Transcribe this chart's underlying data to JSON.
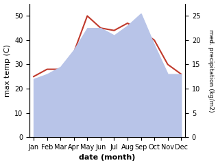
{
  "months": [
    "Jan",
    "Feb",
    "Mar",
    "Apr",
    "May",
    "Jun",
    "Jul",
    "Aug",
    "Sep",
    "Oct",
    "Nov",
    "Dec"
  ],
  "temp": [
    25,
    28,
    28,
    35,
    50,
    45,
    44,
    47,
    44,
    40,
    30,
    26
  ],
  "precip": [
    12,
    13,
    14.5,
    18,
    22.5,
    22.5,
    21,
    23,
    25.5,
    19,
    13,
    13
  ],
  "temp_color": "#c0392b",
  "precip_fill_color": "#b8c4e8",
  "left_ylim": [
    0,
    55
  ],
  "right_ylim": [
    0,
    27.5
  ],
  "left_yticks": [
    0,
    10,
    20,
    30,
    40,
    50
  ],
  "right_yticks": [
    0,
    5,
    10,
    15,
    20,
    25
  ],
  "ylabel_left": "max temp (C)",
  "ylabel_right": "med. precipitation (kg/m2)",
  "xlabel": "date (month)"
}
